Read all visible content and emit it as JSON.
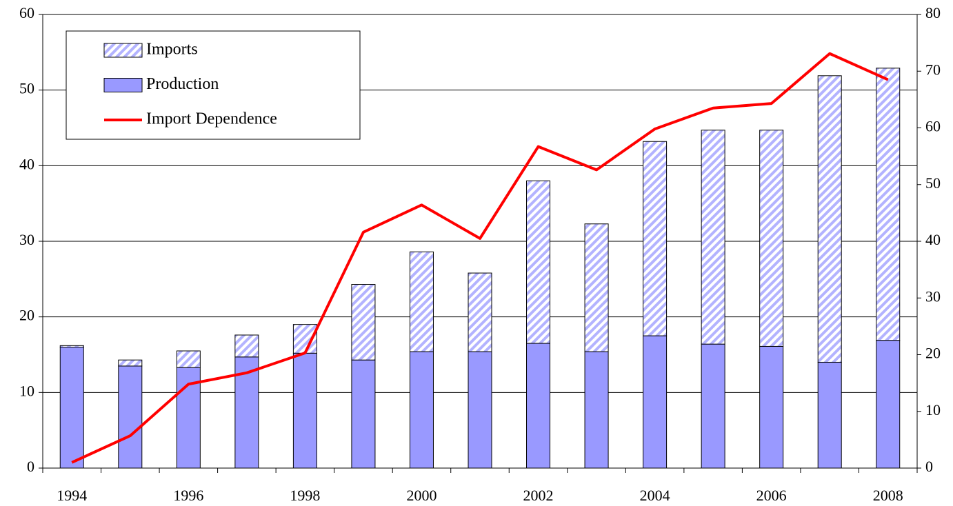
{
  "chart_data": {
    "type": "bar",
    "stacked": true,
    "categories": [
      "1994",
      null,
      "1996",
      null,
      "1998",
      null,
      "2000",
      null,
      "2002",
      null,
      "2004",
      null,
      "2006",
      null,
      "2008"
    ],
    "series": [
      {
        "name": "Imports",
        "type": "bar",
        "color": "#9999ff",
        "pattern": "hatch",
        "values": [
          0.2,
          0.8,
          2.2,
          2.9,
          3.8,
          10.0,
          13.2,
          10.4,
          21.5,
          16.9,
          25.7,
          28.3,
          28.6,
          37.9,
          36.0
        ]
      },
      {
        "name": "Production",
        "type": "bar",
        "color": "#9999ff",
        "values": [
          16.0,
          13.5,
          13.3,
          14.7,
          15.2,
          14.3,
          15.4,
          15.4,
          16.5,
          15.4,
          17.5,
          16.4,
          16.1,
          14.0,
          16.9
        ]
      },
      {
        "name": "Import Dependence",
        "type": "line",
        "axis": "y2",
        "color": "#ff0000",
        "values": [
          1.0,
          5.7,
          14.8,
          16.8,
          20.3,
          41.6,
          46.4,
          40.5,
          56.7,
          52.6,
          59.8,
          63.5,
          64.3,
          73.1,
          68.5
        ]
      }
    ],
    "ylim": [
      0,
      60
    ],
    "yticks": [
      0,
      10,
      20,
      30,
      40,
      50,
      60
    ],
    "y2lim": [
      0,
      80
    ],
    "y2ticks": [
      0,
      10,
      20,
      30,
      40,
      50,
      60,
      70,
      80
    ],
    "grid": true,
    "legend": "upper left"
  }
}
